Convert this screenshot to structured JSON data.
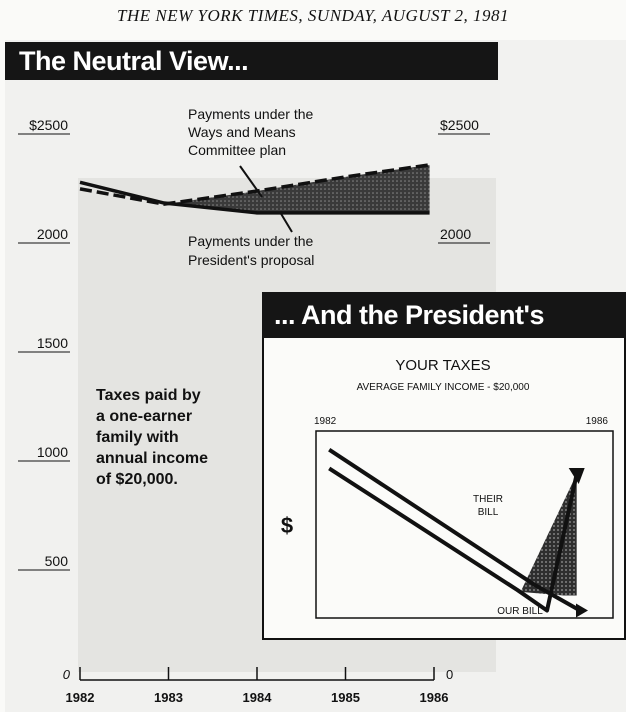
{
  "masthead": "THE NEW YORK TIMES, SUNDAY, AUGUST 2, 1981",
  "chart_data": [
    {
      "type": "line",
      "title": "The Neutral View...",
      "annotation": [
        "Taxes paid by",
        "a one-earner",
        "family with",
        "annual income",
        "of $20,000."
      ],
      "y_tick_labels": [
        "$2500",
        "2000",
        "1500",
        "1000",
        "500",
        "0"
      ],
      "right_tick_labels": [
        "$2500",
        "2000",
        "0"
      ],
      "x_tick_labels": [
        "1982",
        "1983",
        "1984",
        "1985",
        "1986"
      ],
      "ylim": [
        0,
        2500
      ],
      "x": [
        1982,
        1983,
        1984,
        1985,
        1986
      ],
      "series": [
        {
          "name": "Payments under the Ways and Means Committee plan",
          "label_lines": [
            "Payments under the",
            "Ways and Means",
            "Committee plan"
          ],
          "style": "dashed",
          "points": [
            [
              1982,
              2230
            ],
            [
              1982.95,
              2160
            ],
            [
              1984,
              2220
            ],
            [
              1985,
              2285
            ],
            [
              1985.95,
              2340
            ]
          ]
        },
        {
          "name": "Payments under the President's proposal",
          "label_lines": [
            "Payments under the",
            "President's proposal"
          ],
          "style": "solid",
          "points": [
            [
              1982,
              2260
            ],
            [
              1982.95,
              2165
            ],
            [
              1984,
              2120
            ],
            [
              1985,
              2120
            ],
            [
              1985.95,
              2120
            ]
          ]
        }
      ]
    },
    {
      "type": "line",
      "title": "... And the President's",
      "heading": "YOUR TAXES",
      "subheading": "AVERAGE FAMILY INCOME - $20,000",
      "y_axis_label": "$",
      "x_tick_labels": [
        "1982",
        "1986"
      ],
      "series": [
        {
          "name": "THEIR BILL",
          "label_lines": [
            "THEIR",
            "BILL"
          ],
          "points": [
            [
              1982.2,
              0.8
            ],
            [
              1985.05,
              0.15
            ],
            [
              1985.5,
              0.04
            ],
            [
              1985.95,
              0.77
            ]
          ]
        },
        {
          "name": "OUR BILL",
          "label_lines": [
            "OUR BILL"
          ],
          "points": [
            [
              1982.2,
              0.9
            ],
            [
              1985.3,
              0.18
            ],
            [
              1986,
              0.04
            ]
          ]
        }
      ]
    }
  ]
}
